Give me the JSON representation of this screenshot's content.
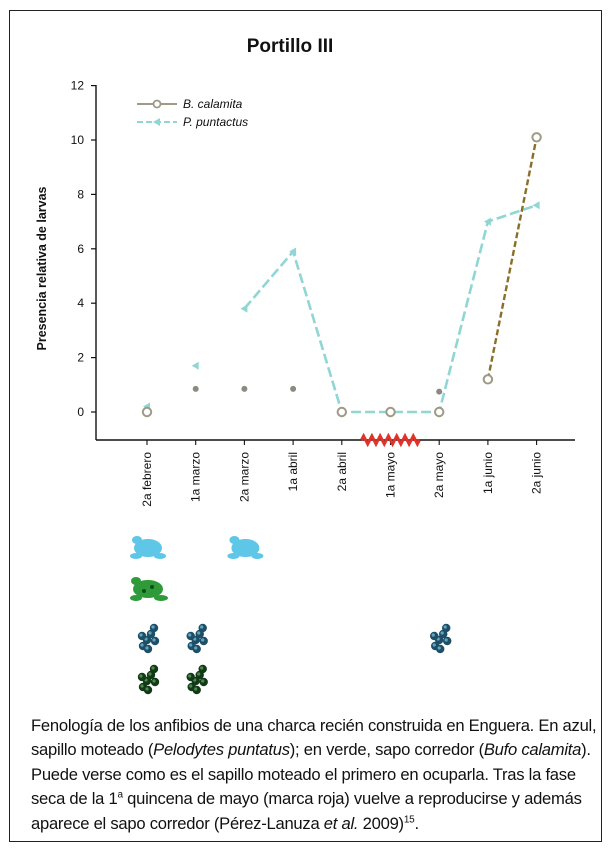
{
  "chart_data": {
    "type": "line",
    "title": "Portillo III",
    "ylabel": "Presencia relativa de larvas",
    "xlabel": "",
    "categories": [
      "2a febrero",
      "1a marzo",
      "2a marzo",
      "1a abril",
      "2a abril",
      "1a mayo",
      "2a mayo",
      "1a junio",
      "2a junio"
    ],
    "yticks": [
      0,
      2,
      4,
      6,
      8,
      10,
      12
    ],
    "ylim": [
      -1,
      12
    ],
    "legend_position": "top-left",
    "series": [
      {
        "name": "B. calamita",
        "color": "#9e9a86",
        "dash_color": "#8a6e2a",
        "values": [
          0,
          null,
          null,
          null,
          0,
          0,
          0,
          1.2,
          10.1
        ]
      },
      {
        "name": "P. puntactus",
        "color": "#8fd6d4",
        "values": [
          0.2,
          1.7,
          3.8,
          5.9,
          0,
          0,
          0,
          7.0,
          7.6
        ]
      }
    ],
    "extra_points": [
      {
        "category": "1a marzo",
        "value": 0.85
      },
      {
        "category": "2a marzo",
        "value": 0.85
      },
      {
        "category": "1a abril",
        "value": 0.85
      },
      {
        "category": "2a mayo",
        "value": 0.75
      }
    ],
    "dry_phase_category": "1a mayo",
    "dry_phase_color": "#e0332a",
    "icon_rows": [
      {
        "icon": "light-blue-frog-icon",
        "categories": [
          "2a febrero",
          "2a marzo"
        ]
      },
      {
        "icon": "green-toad-icon",
        "categories": [
          "2a febrero"
        ]
      },
      {
        "icon": "blue-eggs-icon",
        "categories": [
          "2a febrero",
          "1a marzo",
          "2a mayo"
        ]
      },
      {
        "icon": "green-eggs-icon",
        "categories": [
          "2a febrero",
          "1a marzo"
        ]
      }
    ]
  },
  "caption": {
    "p1": "Fenología de los anfibios de una charca recién construida en Enguera. En azul, sapillo moteado (",
    "i1": "Pelodytes puntatus",
    "p2": "); en verde, sapo corredor (",
    "i2": "Bufo calamita",
    "p3": "). Puede verse como es el sapillo moteado el primero en ocuparla. Tras la fase seca de la 1",
    "sup1": "a",
    "p4": " quincena de mayo (marca roja) vuelve a reproducirse y además aparece el sapo corredor (Pérez-Lanuza ",
    "i3": "et al.",
    "p5": " 2009)",
    "sup2": "15",
    "p6": "."
  }
}
